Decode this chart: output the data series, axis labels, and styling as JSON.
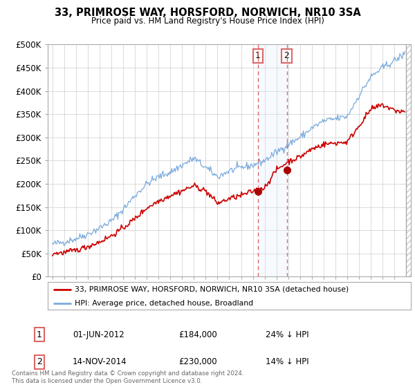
{
  "title": "33, PRIMROSE WAY, HORSFORD, NORWICH, NR10 3SA",
  "subtitle": "Price paid vs. HM Land Registry's House Price Index (HPI)",
  "legend_line1": "33, PRIMROSE WAY, HORSFORD, NORWICH, NR10 3SA (detached house)",
  "legend_line2": "HPI: Average price, detached house, Broadland",
  "footnote": "Contains HM Land Registry data © Crown copyright and database right 2024.\nThis data is licensed under the Open Government Licence v3.0.",
  "transaction1_date": "01-JUN-2012",
  "transaction1_price": "£184,000",
  "transaction1_hpi": "24% ↓ HPI",
  "transaction2_date": "14-NOV-2014",
  "transaction2_price": "£230,000",
  "transaction2_hpi": "14% ↓ HPI",
  "red_line_color": "#cc0000",
  "blue_line_color": "#7aaadd",
  "marker_color": "#aa0000",
  "dashed_line_color": "#dd6666",
  "span_color": "#ddeeff",
  "hatch_color": "#cccccc",
  "border_color": "#aaaaaa",
  "grid_color": "#cccccc",
  "background_color": "#ffffff",
  "t1_year": 2012.42,
  "t2_year": 2014.87,
  "t1_price": 184000,
  "t2_price": 230000,
  "xlim_left": 1994.6,
  "xlim_right": 2025.4,
  "hatch_start": 2025.0,
  "ylim": [
    0,
    500000
  ],
  "yticks": [
    0,
    50000,
    100000,
    150000,
    200000,
    250000,
    300000,
    350000,
    400000,
    450000,
    500000
  ],
  "ytick_labels": [
    "£0",
    "£50K",
    "£100K",
    "£150K",
    "£200K",
    "£250K",
    "£300K",
    "£350K",
    "£400K",
    "£450K",
    "£500K"
  ],
  "hpi_knots_x": [
    1995,
    1996,
    1997,
    1998,
    1999,
    2000,
    2001,
    2002,
    2003,
    2004,
    2005,
    2006,
    2007,
    2008,
    2009,
    2010,
    2011,
    2012,
    2013,
    2014,
    2015,
    2016,
    2017,
    2018,
    2019,
    2020,
    2021,
    2022,
    2023,
    2024,
    2024.9
  ],
  "hpi_knots_y": [
    70000,
    75000,
    82000,
    92000,
    105000,
    120000,
    145000,
    175000,
    200000,
    215000,
    225000,
    240000,
    255000,
    235000,
    215000,
    228000,
    235000,
    240000,
    250000,
    268000,
    285000,
    300000,
    320000,
    335000,
    340000,
    345000,
    390000,
    430000,
    450000,
    465000,
    480000
  ],
  "red_knots_x": [
    1995,
    1996,
    1997,
    1998,
    1999,
    2000,
    2001,
    2002,
    2003,
    2004,
    2005,
    2006,
    2007,
    2008,
    2009,
    2010,
    2011,
    2012,
    2013,
    2014,
    2015,
    2016,
    2017,
    2018,
    2019,
    2020,
    2021,
    2022,
    2023,
    2024,
    2024.9
  ],
  "red_knots_y": [
    50000,
    52000,
    57000,
    65000,
    75000,
    88000,
    105000,
    125000,
    148000,
    163000,
    175000,
    185000,
    196000,
    185000,
    158000,
    168000,
    175000,
    184000,
    192000,
    230000,
    248000,
    258000,
    275000,
    285000,
    288000,
    290000,
    325000,
    360000,
    370000,
    358000,
    355000
  ],
  "noise_seed": 42,
  "hpi_noise_scale": 4000,
  "red_noise_scale": 3000
}
